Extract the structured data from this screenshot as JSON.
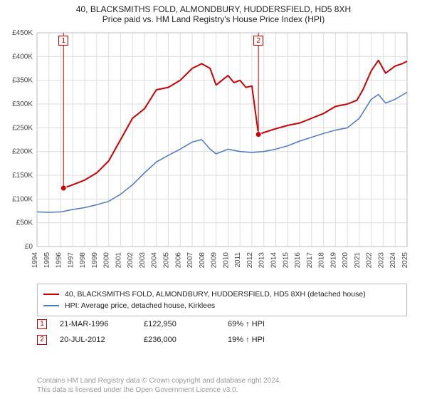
{
  "title": {
    "line1": "40, BLACKSMITHS FOLD, ALMONDBURY, HUDDERSFIELD, HD5 8XH",
    "line2": "Price paid vs. HM Land Registry's House Price Index (HPI)",
    "fontsize": 12
  },
  "chart": {
    "type": "line",
    "background_color": "#ffffff",
    "grid_color": "#dddddd",
    "axis_color": "#bbbbbb",
    "xlim": [
      1994,
      2025
    ],
    "ylim": [
      0,
      450000
    ],
    "ytick_step": 50000,
    "ytick_labels": [
      "£0",
      "£50K",
      "£100K",
      "£150K",
      "£200K",
      "£250K",
      "£300K",
      "£350K",
      "£400K",
      "£450K"
    ],
    "xticks": [
      1994,
      1995,
      1996,
      1997,
      1998,
      1999,
      2000,
      2001,
      2002,
      2003,
      2004,
      2005,
      2006,
      2007,
      2008,
      2009,
      2010,
      2011,
      2012,
      2013,
      2014,
      2015,
      2016,
      2017,
      2018,
      2019,
      2020,
      2021,
      2022,
      2023,
      2024,
      2025
    ],
    "series": [
      {
        "name": "property",
        "label": "40, BLACKSMITHS FOLD, ALMONDBURY, HUDDERSFIELD, HD5 8XH (detached house)",
        "color": "#cc0000",
        "line_width": 2,
        "points": [
          [
            1996.22,
            122950
          ],
          [
            1997,
            130000
          ],
          [
            1998,
            140000
          ],
          [
            1999,
            155000
          ],
          [
            2000,
            180000
          ],
          [
            2001,
            225000
          ],
          [
            2002,
            270000
          ],
          [
            2003,
            290000
          ],
          [
            2004,
            330000
          ],
          [
            2005,
            335000
          ],
          [
            2006,
            350000
          ],
          [
            2007,
            375000
          ],
          [
            2007.8,
            385000
          ],
          [
            2008.5,
            375000
          ],
          [
            2009,
            340000
          ],
          [
            2009.5,
            350000
          ],
          [
            2010,
            360000
          ],
          [
            2010.5,
            345000
          ],
          [
            2011,
            350000
          ],
          [
            2011.5,
            335000
          ],
          [
            2012,
            338000
          ],
          [
            2012.55,
            236000
          ],
          [
            2013,
            240000
          ],
          [
            2014,
            248000
          ],
          [
            2015,
            255000
          ],
          [
            2016,
            260000
          ],
          [
            2017,
            270000
          ],
          [
            2018,
            280000
          ],
          [
            2019,
            295000
          ],
          [
            2020,
            300000
          ],
          [
            2020.8,
            308000
          ],
          [
            2021.3,
            330000
          ],
          [
            2022,
            370000
          ],
          [
            2022.6,
            392000
          ],
          [
            2023.2,
            365000
          ],
          [
            2024,
            380000
          ],
          [
            2024.6,
            385000
          ],
          [
            2025,
            390000
          ]
        ],
        "markers": [
          {
            "x": 1996.22,
            "y": 122950,
            "label": "1"
          },
          {
            "x": 2012.55,
            "y": 236000,
            "label": "2"
          }
        ]
      },
      {
        "name": "hpi",
        "label": "HPI: Average price, detached house, Kirklees",
        "color": "#4a78c4",
        "line_width": 1.5,
        "points": [
          [
            1994,
            73000
          ],
          [
            1995,
            72000
          ],
          [
            1996,
            73000
          ],
          [
            1997,
            78000
          ],
          [
            1998,
            82000
          ],
          [
            1999,
            88000
          ],
          [
            2000,
            95000
          ],
          [
            2001,
            110000
          ],
          [
            2002,
            130000
          ],
          [
            2003,
            155000
          ],
          [
            2004,
            178000
          ],
          [
            2005,
            192000
          ],
          [
            2006,
            205000
          ],
          [
            2007,
            220000
          ],
          [
            2007.8,
            225000
          ],
          [
            2008.5,
            205000
          ],
          [
            2009,
            195000
          ],
          [
            2009.5,
            200000
          ],
          [
            2010,
            205000
          ],
          [
            2011,
            200000
          ],
          [
            2012,
            198000
          ],
          [
            2013,
            200000
          ],
          [
            2014,
            205000
          ],
          [
            2015,
            212000
          ],
          [
            2016,
            222000
          ],
          [
            2017,
            230000
          ],
          [
            2018,
            238000
          ],
          [
            2019,
            245000
          ],
          [
            2020,
            250000
          ],
          [
            2021,
            270000
          ],
          [
            2022,
            310000
          ],
          [
            2022.6,
            320000
          ],
          [
            2023.2,
            302000
          ],
          [
            2024,
            310000
          ],
          [
            2025,
            325000
          ]
        ]
      }
    ]
  },
  "legend": {
    "items": [
      {
        "color": "#cc0000",
        "text": "40, BLACKSMITHS FOLD, ALMONDBURY, HUDDERSFIELD, HD5 8XH (detached house)"
      },
      {
        "color": "#4a78c4",
        "text": "HPI: Average price, detached house, Kirklees"
      }
    ]
  },
  "events": [
    {
      "num": "1",
      "date": "21-MAR-1996",
      "price": "£122,950",
      "pct": "69% ↑ HPI"
    },
    {
      "num": "2",
      "date": "20-JUL-2012",
      "price": "£236,000",
      "pct": "19% ↑ HPI"
    }
  ],
  "footnote": {
    "line1": "Contains HM Land Registry data © Crown copyright and database right 2024.",
    "line2": "This data is licensed under the Open Government Licence v3.0."
  }
}
